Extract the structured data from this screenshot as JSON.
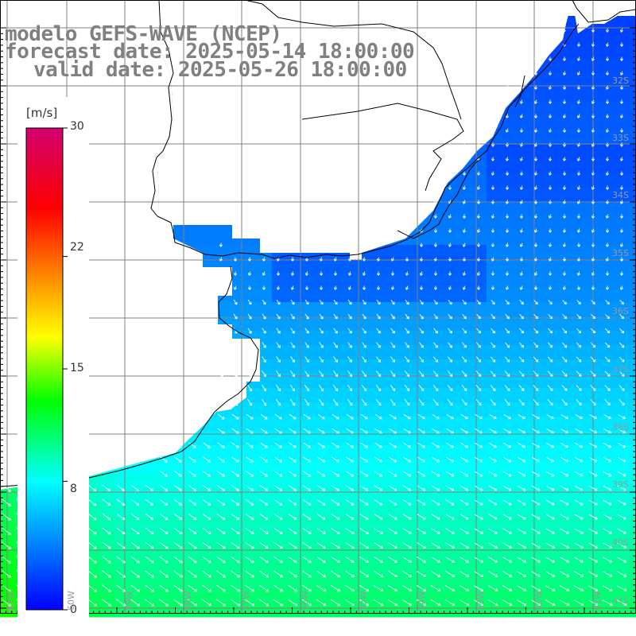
{
  "header": {
    "line1": "modelo GEFS-WAVE (NCEP)",
    "line2": "forecast date: 2025-05-14 18:00:00",
    "line3": "valid date: 2025-05-26 18:00:00"
  },
  "colorbar": {
    "unit": "[m/s]",
    "ticks": [
      "30",
      "22",
      "15",
      "8",
      "0"
    ],
    "min": 0,
    "max": 30,
    "colors": [
      "#0000ff",
      "#00ffff",
      "#00ff00",
      "#ffff00",
      "#ff8000",
      "#ff0000",
      "#d0006f"
    ]
  },
  "grid": {
    "lat_labels": [
      "32S",
      "33S",
      "34S",
      "35S",
      "36S",
      "37S",
      "38S",
      "39S",
      "40S",
      "41S"
    ],
    "lon_labels": [
      "61W",
      "60W",
      "59W",
      "58W",
      "57W",
      "56W",
      "55W",
      "54W",
      "53W",
      "52W",
      "51W"
    ]
  },
  "map": {
    "land_color": "#ffffff",
    "coast_color": "#000000",
    "grid_color": "#808080",
    "arrow_color": "#ffffff"
  }
}
